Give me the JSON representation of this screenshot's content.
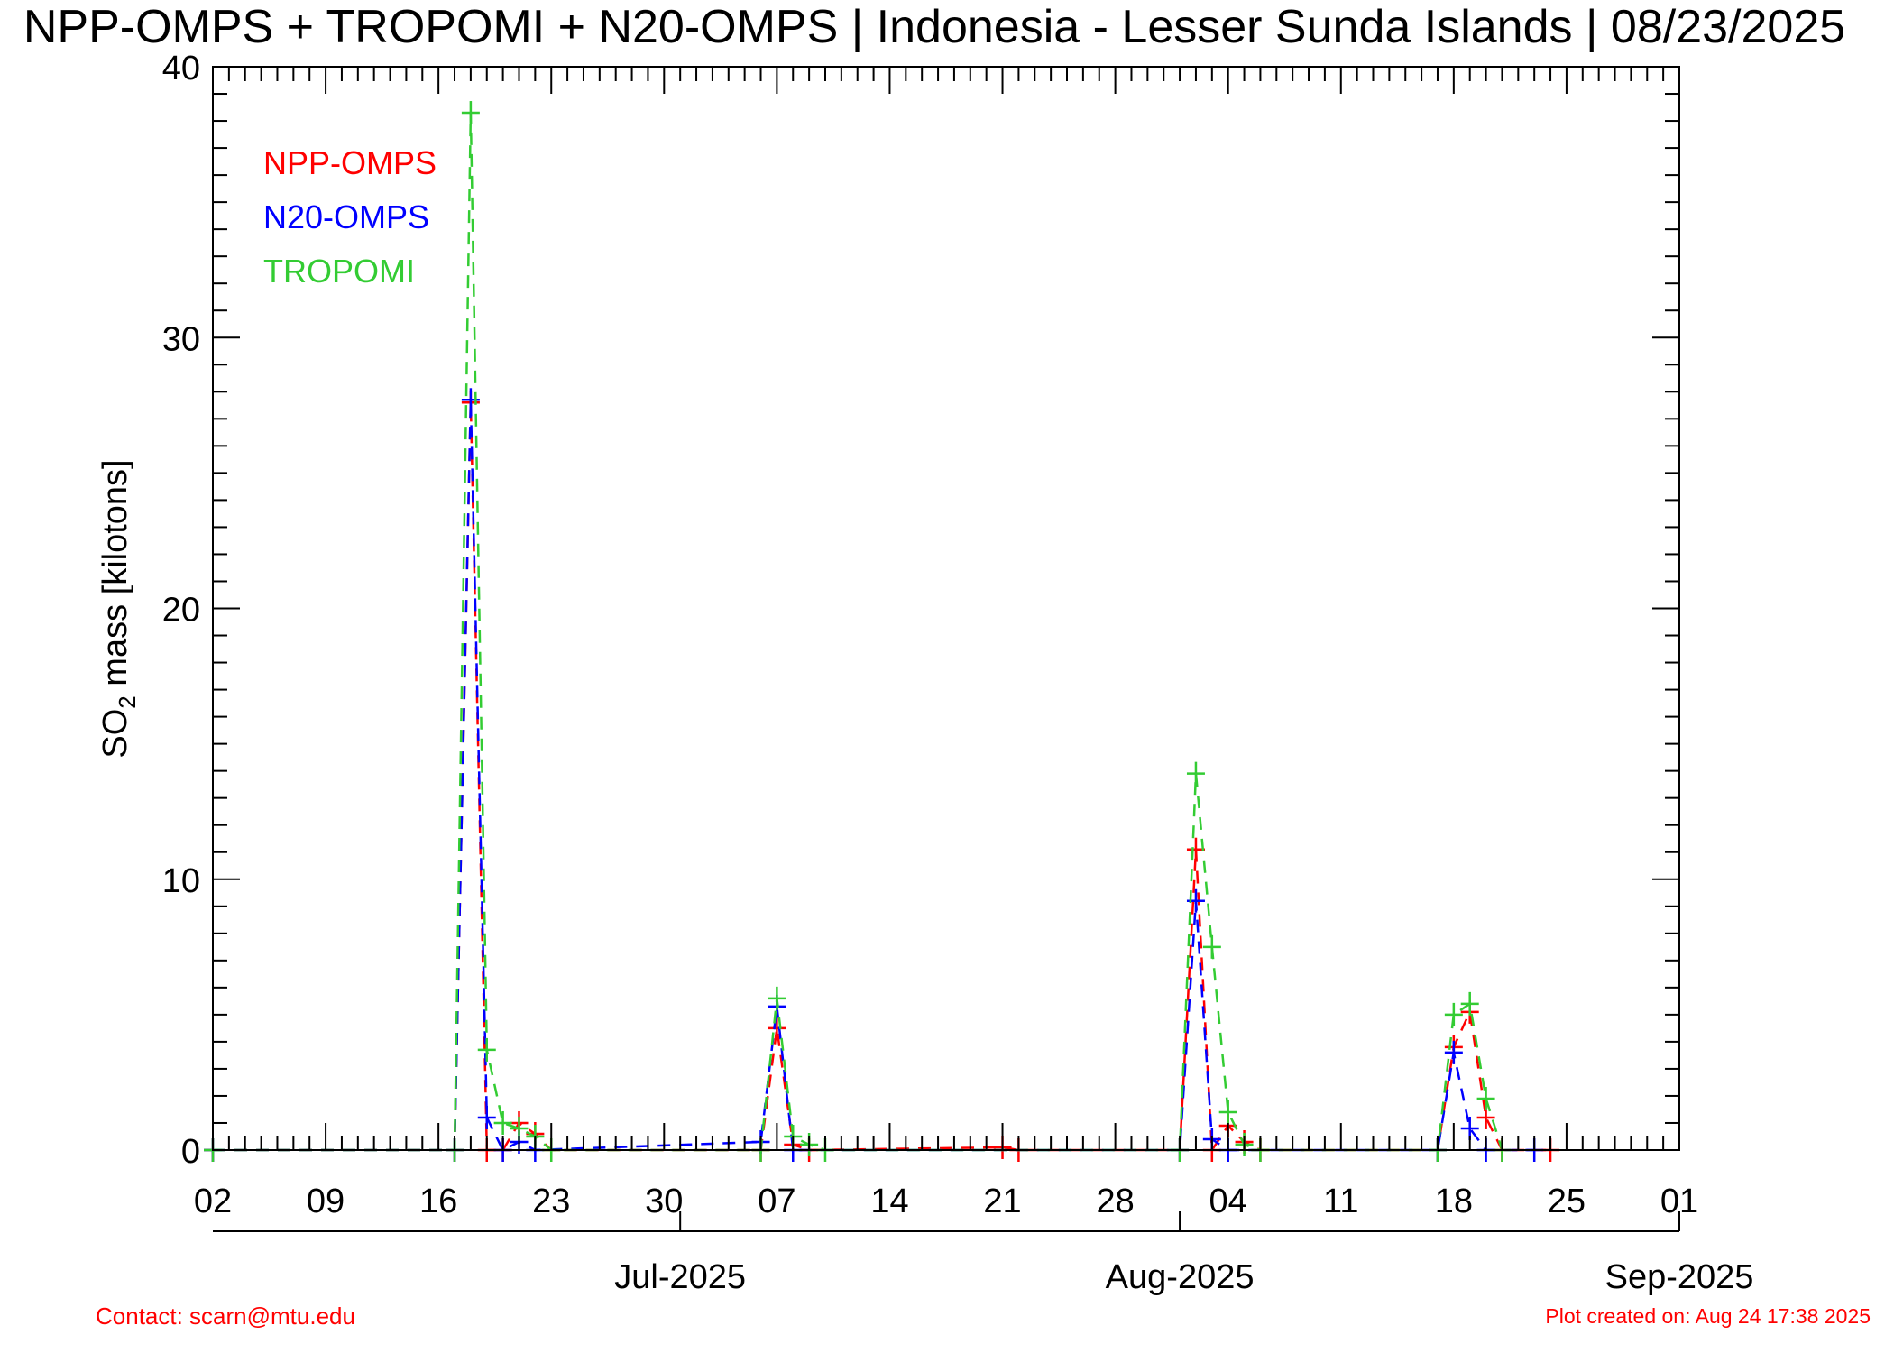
{
  "chart_data": {
    "type": "line",
    "title": "NPP-OMPS + TROPOMI + N20-OMPS | Indonesia - Lesser Sunda Islands | 08/23/2025",
    "ylabel_main": "SO",
    "ylabel_sub": "2",
    "ylabel_rest": " mass [kilotons]",
    "ylim": [
      0,
      40
    ],
    "yticks": [
      "0",
      "10",
      "20",
      "30",
      "40"
    ],
    "xlim": [
      "2025-06-02",
      "2025-09-01"
    ],
    "xtick_labels": [
      "02",
      "09",
      "16",
      "23",
      "30",
      "07",
      "14",
      "21",
      "28",
      "04",
      "11",
      "18",
      "25",
      "01"
    ],
    "month_labels": [
      "Jul-2025",
      "Aug-2025",
      "Sep-2025"
    ],
    "legend_position": "top-left",
    "series": [
      {
        "name": "NPP-OMPS",
        "color": "#ff0000",
        "points": [
          {
            "date": "2025-06-02",
            "value": 0
          },
          {
            "date": "2025-06-17",
            "value": 0
          },
          {
            "date": "2025-06-18",
            "value": 27.6
          },
          {
            "date": "2025-06-19",
            "value": 0
          },
          {
            "date": "2025-06-20",
            "value": 0
          },
          {
            "date": "2025-06-21",
            "value": 1.0
          },
          {
            "date": "2025-06-22",
            "value": 0.6
          },
          {
            "date": "2025-06-23",
            "value": 0
          },
          {
            "date": "2025-07-06",
            "value": 0
          },
          {
            "date": "2025-07-07",
            "value": 4.5
          },
          {
            "date": "2025-07-08",
            "value": 0.2
          },
          {
            "date": "2025-07-09",
            "value": 0
          },
          {
            "date": "2025-07-21",
            "value": 0.1
          },
          {
            "date": "2025-07-22",
            "value": 0
          },
          {
            "date": "2025-08-01",
            "value": 0
          },
          {
            "date": "2025-08-02",
            "value": 11.1
          },
          {
            "date": "2025-08-03",
            "value": 0
          },
          {
            "date": "2025-08-04",
            "value": 0.9
          },
          {
            "date": "2025-08-05",
            "value": 0.3
          },
          {
            "date": "2025-08-06",
            "value": 0
          },
          {
            "date": "2025-08-17",
            "value": 0
          },
          {
            "date": "2025-08-18",
            "value": 3.8
          },
          {
            "date": "2025-08-19",
            "value": 5.1
          },
          {
            "date": "2025-08-20",
            "value": 1.2
          },
          {
            "date": "2025-08-21",
            "value": 0
          },
          {
            "date": "2025-08-24",
            "value": 0
          }
        ]
      },
      {
        "name": "N20-OMPS",
        "color": "#0000ff",
        "points": [
          {
            "date": "2025-06-02",
            "value": 0
          },
          {
            "date": "2025-06-17",
            "value": 0
          },
          {
            "date": "2025-06-18",
            "value": 27.7
          },
          {
            "date": "2025-06-19",
            "value": 1.2
          },
          {
            "date": "2025-06-20",
            "value": 0
          },
          {
            "date": "2025-06-21",
            "value": 0.3
          },
          {
            "date": "2025-06-22",
            "value": 0
          },
          {
            "date": "2025-07-06",
            "value": 0.3
          },
          {
            "date": "2025-07-07",
            "value": 5.3
          },
          {
            "date": "2025-07-08",
            "value": 0
          },
          {
            "date": "2025-08-01",
            "value": 0
          },
          {
            "date": "2025-08-02",
            "value": 9.2
          },
          {
            "date": "2025-08-03",
            "value": 0.4
          },
          {
            "date": "2025-08-04",
            "value": 0
          },
          {
            "date": "2025-08-17",
            "value": 0
          },
          {
            "date": "2025-08-18",
            "value": 3.6
          },
          {
            "date": "2025-08-19",
            "value": 0.8
          },
          {
            "date": "2025-08-20",
            "value": 0
          },
          {
            "date": "2025-08-23",
            "value": 0
          }
        ]
      },
      {
        "name": "TROPOMI",
        "color": "#33cc33",
        "points": [
          {
            "date": "2025-06-02",
            "value": 0
          },
          {
            "date": "2025-06-17",
            "value": 0
          },
          {
            "date": "2025-06-18",
            "value": 38.3
          },
          {
            "date": "2025-06-19",
            "value": 3.7
          },
          {
            "date": "2025-06-20",
            "value": 1.0
          },
          {
            "date": "2025-06-21",
            "value": 0.8
          },
          {
            "date": "2025-06-22",
            "value": 0.5
          },
          {
            "date": "2025-06-23",
            "value": 0
          },
          {
            "date": "2025-07-06",
            "value": 0
          },
          {
            "date": "2025-07-07",
            "value": 5.6
          },
          {
            "date": "2025-07-08",
            "value": 0.5
          },
          {
            "date": "2025-07-09",
            "value": 0.2
          },
          {
            "date": "2025-07-10",
            "value": 0
          },
          {
            "date": "2025-08-01",
            "value": 0
          },
          {
            "date": "2025-08-02",
            "value": 13.9
          },
          {
            "date": "2025-08-03",
            "value": 7.5
          },
          {
            "date": "2025-08-04",
            "value": 1.4
          },
          {
            "date": "2025-08-05",
            "value": 0.2
          },
          {
            "date": "2025-08-06",
            "value": 0
          },
          {
            "date": "2025-08-17",
            "value": 0
          },
          {
            "date": "2025-08-18",
            "value": 5.0
          },
          {
            "date": "2025-08-19",
            "value": 5.4
          },
          {
            "date": "2025-08-20",
            "value": 1.9
          },
          {
            "date": "2025-08-21",
            "value": 0
          }
        ]
      }
    ]
  },
  "footer": {
    "contact": "Contact: scarn@mtu.edu",
    "created": "Plot created on: Aug 24 17:38 2025"
  }
}
